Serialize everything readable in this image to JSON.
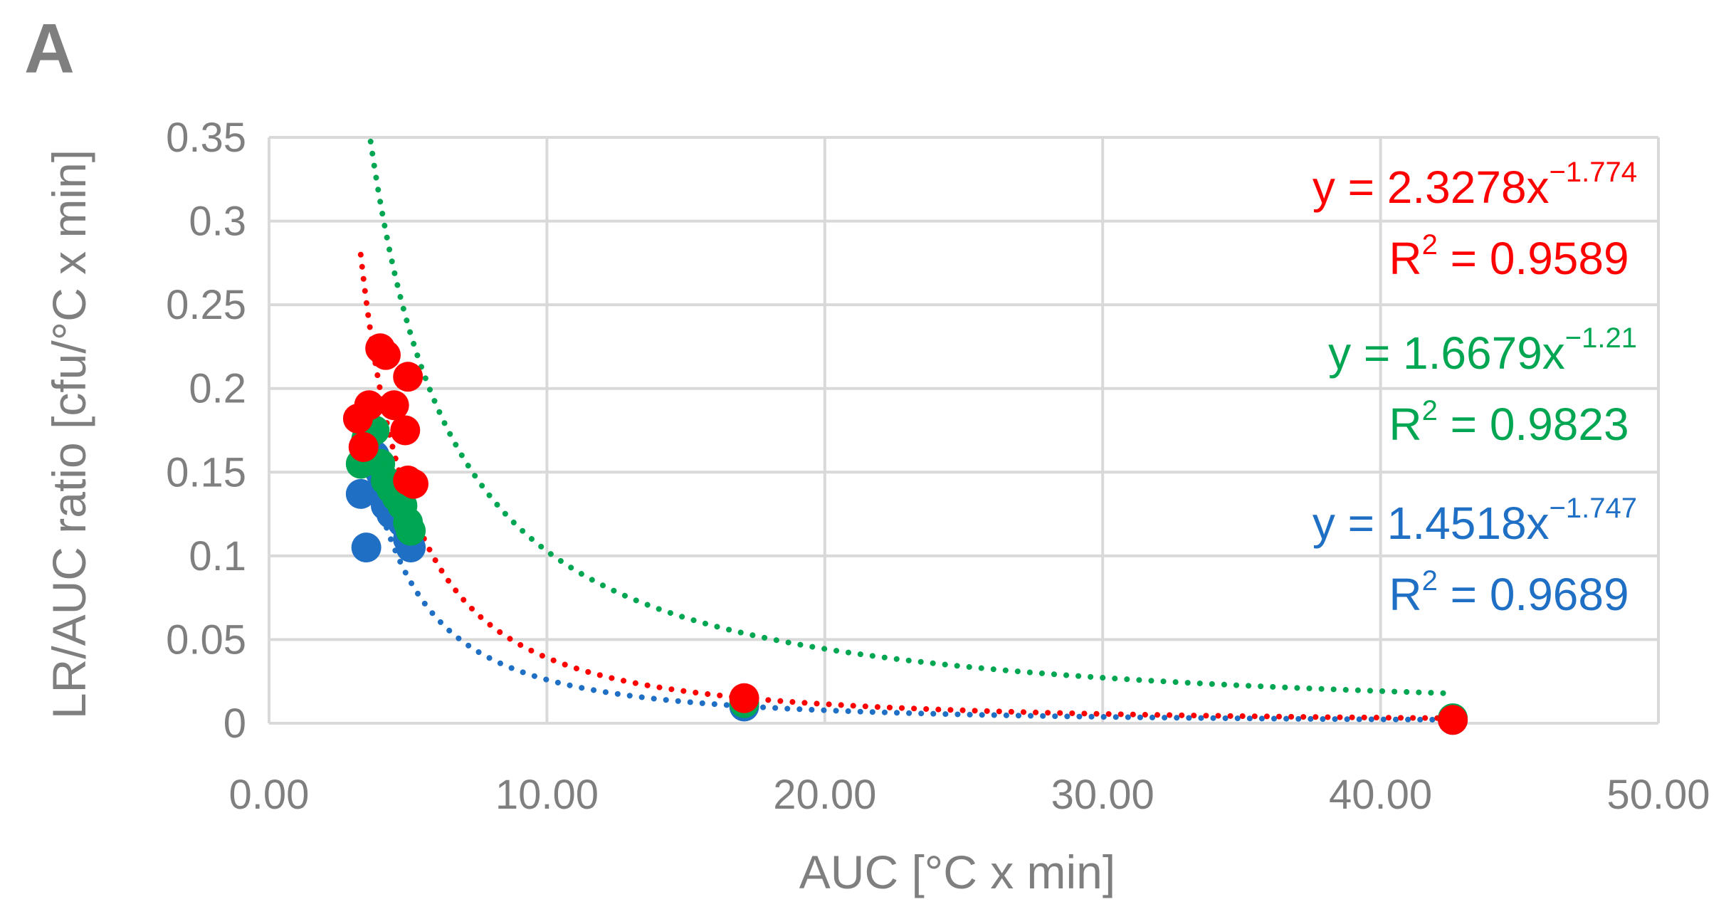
{
  "panel_label": "A",
  "chart_data": {
    "type": "scatter",
    "title": "",
    "xlabel": "AUC [°C x min]",
    "ylabel": "LR/AUC ratio [cfu/°C x min]",
    "xlim": [
      0,
      50
    ],
    "ylim": [
      0,
      0.35
    ],
    "xticks": [
      "0.00",
      "10.00",
      "20.00",
      "30.00",
      "40.00",
      "50.00"
    ],
    "xtick_values": [
      0,
      10,
      20,
      30,
      40,
      50
    ],
    "yticks": [
      "0",
      "0.05",
      "0.1",
      "0.15",
      "0.2",
      "0.25",
      "0.3",
      "0.35"
    ],
    "ytick_values": [
      0,
      0.05,
      0.1,
      0.15,
      0.2,
      0.25,
      0.3,
      0.35
    ],
    "grid": true,
    "legend": "none",
    "series": [
      {
        "color": "#1f6fc5",
        "x": [
          3.3,
          3.5,
          3.8,
          4.0,
          4.2,
          4.4,
          4.6,
          4.8,
          5.0,
          5.1,
          17.1,
          42.6
        ],
        "y": [
          0.137,
          0.105,
          0.16,
          0.15,
          0.13,
          0.125,
          0.14,
          0.12,
          0.11,
          0.105,
          0.01,
          0.002
        ],
        "trendline": {
          "type": "power",
          "a": 1.4518,
          "b": -1.747,
          "x_range": [
            3.3,
            42.6
          ]
        },
        "equation_text": "y = 1.4518x",
        "exponent_text": "−1.747",
        "r2_label": "R",
        "r2_sup": "2",
        "r2_value": " = 0.9689"
      },
      {
        "color": "#00a651",
        "x": [
          3.3,
          3.5,
          3.8,
          4.0,
          4.2,
          4.4,
          4.6,
          4.8,
          5.0,
          5.1,
          17.1,
          42.6
        ],
        "y": [
          0.155,
          0.17,
          0.175,
          0.155,
          0.145,
          0.14,
          0.135,
          0.13,
          0.12,
          0.115,
          0.012,
          0.003
        ],
        "trendline": {
          "type": "power",
          "a": 1.6679,
          "b": -1.21,
          "x_range": [
            3.3,
            42.6
          ]
        },
        "equation_text": "y = 1.6679x",
        "exponent_text": "−1.21",
        "r2_label": "R",
        "r2_sup": "2",
        "r2_value": " = 0.9823"
      },
      {
        "color": "#ff0000",
        "x": [
          3.2,
          3.4,
          3.6,
          4.0,
          4.2,
          4.5,
          4.9,
          5.0,
          5.0,
          5.2,
          17.1,
          42.6
        ],
        "y": [
          0.182,
          0.165,
          0.19,
          0.224,
          0.22,
          0.19,
          0.175,
          0.207,
          0.145,
          0.143,
          0.015,
          0.002
        ],
        "trendline": {
          "type": "power",
          "a": 2.3278,
          "b": -1.774,
          "x_range": [
            3.3,
            42.6
          ]
        },
        "equation_text": "y = 2.3278x",
        "exponent_text": "−1.774",
        "r2_label": "R",
        "r2_sup": "2",
        "r2_value": " = 0.9589"
      }
    ]
  }
}
